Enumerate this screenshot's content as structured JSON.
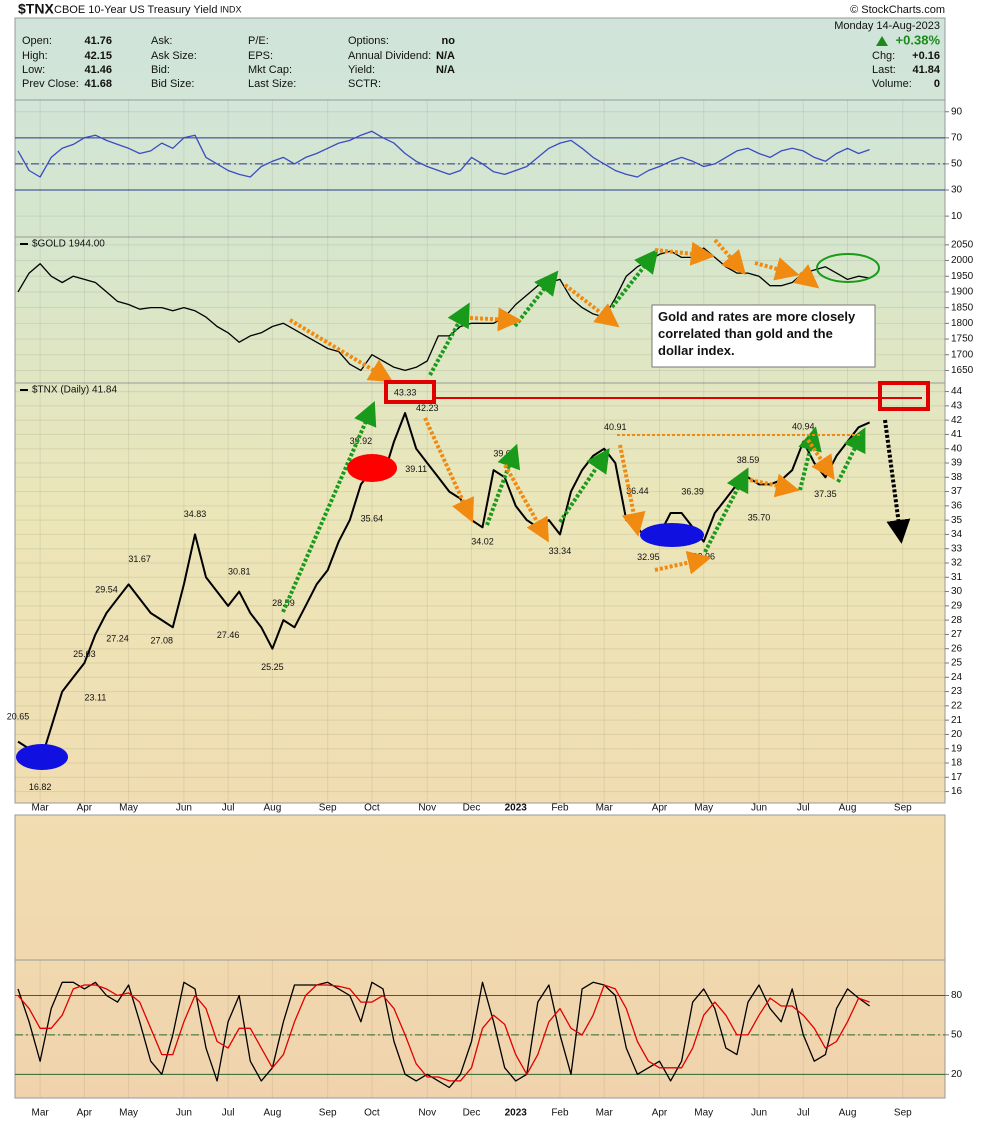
{
  "header": {
    "symbol": "$TNX",
    "name": "CBOE 10-Year US Treasury Yield",
    "exchange": "INDX",
    "watermark": "© StockCharts.com",
    "date": "Monday 14-Aug-2023",
    "change_percent": "+0.38%",
    "quote": [
      [
        {
          "label": "Open:",
          "value": 41.76
        },
        {
          "label": "High:",
          "value": 42.15
        },
        {
          "label": "Low:",
          "value": 41.46
        },
        {
          "label": "Prev Close:",
          "value": 41.68
        }
      ],
      [
        {
          "label": "Ask:"
        },
        {
          "label": "Ask Size:"
        },
        {
          "label": "Bid:"
        },
        {
          "label": "Bid Size:"
        }
      ],
      [
        {
          "label": "P/E:"
        },
        {
          "label": "EPS:"
        },
        {
          "label": "Mkt Cap:"
        },
        {
          "label": "Last Size:"
        }
      ],
      [
        {
          "label": "Options:",
          "value": "no"
        },
        {
          "label": "Annual Dividend:",
          "value": "N/A"
        },
        {
          "label": "Yield:",
          "value": "N/A"
        },
        {
          "label": "SCTR:"
        }
      ]
    ],
    "summary": [
      {
        "label": "Chg:",
        "value": "+0.16"
      },
      {
        "label": "Last:",
        "value": 41.84
      },
      {
        "label": "Volume:",
        "value": 0
      }
    ]
  },
  "annotation": "Gold and rates are more closely correlated than gold and the dollar index.",
  "chart_data": [
    {
      "type": "line",
      "ylim": [
        -6,
        99
      ],
      "yticks": [
        10,
        30,
        50,
        70,
        90
      ],
      "reference_lines": [
        30,
        50,
        70
      ],
      "reference_color": "#2a3a8a",
      "grid": true,
      "series": [
        {
          "color": "#3b4cc0",
          "values": [
            60,
            45,
            40,
            55,
            62,
            65,
            70,
            72,
            68,
            65,
            62,
            58,
            60,
            66,
            62,
            70,
            72,
            55,
            50,
            45,
            42,
            40,
            48,
            52,
            55,
            50,
            55,
            58,
            62,
            66,
            68,
            72,
            75,
            70,
            66,
            58,
            52,
            48,
            45,
            42,
            45,
            55,
            50,
            44,
            42,
            45,
            48,
            55,
            62,
            66,
            68,
            62,
            55,
            50,
            45,
            42,
            40,
            45,
            48,
            52,
            55,
            52,
            48,
            50,
            55,
            60,
            62,
            58,
            55,
            60,
            62,
            60,
            55,
            52,
            58,
            62,
            58,
            61,
            null,
            null,
            null,
            null,
            null,
            null
          ]
        }
      ]
    },
    {
      "type": "line",
      "ylim": [
        1610,
        2075
      ],
      "yticks": [
        1650,
        1700,
        1750,
        1800,
        1850,
        1900,
        1950,
        2000,
        2050
      ],
      "grid": true,
      "series": [
        {
          "name": "$GOLD 1944.00",
          "color": "#000000",
          "values": [
            1900,
            1960,
            1990,
            1950,
            1930,
            1950,
            1940,
            1930,
            1900,
            1870,
            1860,
            1845,
            1850,
            1850,
            1840,
            1850,
            1840,
            1820,
            1790,
            1770,
            1740,
            1760,
            1770,
            1790,
            1800,
            1780,
            1760,
            1740,
            1720,
            1710,
            1670,
            1650,
            1700,
            1680,
            1660,
            1650,
            1660,
            1680,
            1760,
            1760,
            1790,
            1800,
            1800,
            1800,
            1820,
            1860,
            1890,
            1920,
            1930,
            1940,
            1880,
            1850,
            1830,
            1820,
            1880,
            1950,
            1980,
            2000,
            2020,
            2030,
            2010,
            2010,
            2040,
            2010,
            1980,
            1960,
            1960,
            1950,
            1920,
            1920,
            1930,
            1960,
            1970,
            1980,
            1960,
            1940,
            1950,
            1944,
            null,
            null,
            null,
            null,
            null,
            null
          ]
        }
      ]
    },
    {
      "type": "line",
      "ylim": [
        15.2,
        44.6
      ],
      "yticks": [
        16,
        17,
        18,
        19,
        20,
        21,
        22,
        23,
        24,
        25,
        26,
        27,
        28,
        29,
        30,
        31,
        32,
        33,
        34,
        35,
        36,
        37,
        38,
        39,
        40,
        41,
        42,
        43,
        44
      ],
      "grid": true,
      "categories": [
        null,
        null,
        "Mar",
        null,
        null,
        null,
        "Apr",
        null,
        null,
        null,
        "May",
        null,
        null,
        null,
        null,
        "Jun",
        null,
        null,
        null,
        "Jul",
        null,
        null,
        null,
        "Aug",
        null,
        null,
        null,
        null,
        "Sep",
        null,
        null,
        null,
        "Oct",
        null,
        null,
        null,
        null,
        "Nov",
        null,
        null,
        null,
        "Dec",
        null,
        null,
        null,
        "2023",
        null,
        null,
        null,
        "Feb",
        null,
        null,
        null,
        "Mar",
        null,
        null,
        null,
        null,
        "Apr",
        null,
        null,
        null,
        "May",
        null,
        null,
        null,
        null,
        "Jun",
        null,
        null,
        null,
        "Jul",
        null,
        null,
        null,
        "Aug",
        null,
        null,
        null,
        null,
        "Sep",
        null,
        null,
        null
      ],
      "series": [
        {
          "name": "$TNX (Daily) 41.84",
          "color": "#000000",
          "values": [
            19.5,
            19,
            18,
            20.5,
            23,
            24,
            25,
            27,
            28.5,
            29.5,
            30.5,
            29.5,
            28.5,
            28,
            27.5,
            30.5,
            34,
            31,
            30,
            29,
            30,
            28.5,
            27.5,
            26,
            28,
            27.5,
            29,
            30.5,
            31.5,
            33.5,
            35,
            37.5,
            38.5,
            38,
            40.5,
            42.5,
            40,
            39,
            38,
            37,
            36.5,
            35,
            34.5,
            38.5,
            38,
            36,
            35,
            34.5,
            35,
            34,
            37,
            38.5,
            39.5,
            40,
            39,
            35,
            34.5,
            33.5,
            34,
            35.5,
            35.5,
            34.5,
            33.5,
            35.5,
            36.5,
            37.5,
            38,
            37.5,
            37.5,
            37.8,
            38.5,
            40.5,
            39,
            38,
            39.5,
            40.5,
            41.5,
            41.84,
            null,
            null,
            null,
            null,
            null,
            null
          ]
        }
      ],
      "point_labels": [
        20.65,
        null,
        16.82,
        null,
        null,
        null,
        25.03,
        23.11,
        29.54,
        27.24,
        null,
        31.67,
        null,
        27.08,
        null,
        null,
        34.83,
        null,
        null,
        27.46,
        30.81,
        null,
        null,
        25.25,
        28.59,
        null,
        null,
        null,
        null,
        null,
        null,
        39.92,
        35.64,
        null,
        null,
        43.33,
        39.11,
        42.23,
        null,
        null,
        null,
        null,
        34.02,
        null,
        39.05,
        null,
        null,
        null,
        null,
        33.34,
        null,
        null,
        null,
        null,
        40.91,
        null,
        36.44,
        32.95,
        null,
        null,
        null,
        36.39,
        32.96,
        null,
        null,
        null,
        38.59,
        {
          "value": 35.7,
          "label": "35.70"
        },
        null,
        null,
        null,
        40.94,
        null,
        37.35,
        null,
        null,
        null,
        null,
        null,
        null,
        null,
        null,
        null,
        null
      ]
    },
    {
      "type": "line",
      "ylim": [
        2,
        107
      ],
      "yticks": [
        20,
        50,
        80
      ],
      "reference_lines": [
        20,
        50,
        80
      ],
      "reference_color": "#2f6b2f",
      "grid": true,
      "categories": [
        null,
        null,
        "Mar",
        null,
        null,
        null,
        "Apr",
        null,
        null,
        null,
        "May",
        null,
        null,
        null,
        null,
        "Jun",
        null,
        null,
        null,
        "Jul",
        null,
        null,
        null,
        "Aug",
        null,
        null,
        null,
        null,
        "Sep",
        null,
        null,
        null,
        "Oct",
        null,
        null,
        null,
        null,
        "Nov",
        null,
        null,
        null,
        "Dec",
        null,
        null,
        null,
        "2023",
        null,
        null,
        null,
        "Feb",
        null,
        null,
        null,
        "Mar",
        null,
        null,
        null,
        null,
        "Apr",
        null,
        null,
        null,
        "May",
        null,
        null,
        null,
        null,
        "Jun",
        null,
        null,
        null,
        "Jul",
        null,
        null,
        null,
        "Aug",
        null,
        null,
        null,
        null,
        "Sep",
        null,
        null,
        null
      ],
      "series": [
        {
          "color": "#000000",
          "values": [
            85,
            60,
            30,
            70,
            90,
            90,
            85,
            90,
            80,
            75,
            88,
            60,
            30,
            20,
            50,
            90,
            85,
            40,
            15,
            60,
            80,
            30,
            15,
            25,
            60,
            88,
            88,
            88,
            90,
            85,
            80,
            60,
            90,
            85,
            45,
            20,
            15,
            20,
            15,
            10,
            20,
            45,
            90,
            60,
            25,
            15,
            20,
            75,
            88,
            50,
            20,
            85,
            90,
            88,
            80,
            40,
            20,
            25,
            30,
            15,
            30,
            75,
            85,
            70,
            40,
            35,
            75,
            88,
            70,
            60,
            85,
            50,
            30,
            35,
            70,
            85,
            78,
            72,
            null,
            null,
            null,
            null,
            null,
            null
          ]
        },
        {
          "color": "#e00000",
          "values": [
            80,
            70,
            55,
            55,
            65,
            85,
            88,
            88,
            85,
            80,
            82,
            75,
            55,
            35,
            35,
            60,
            80,
            70,
            45,
            40,
            55,
            55,
            40,
            25,
            35,
            60,
            80,
            88,
            88,
            87,
            85,
            75,
            75,
            80,
            70,
            50,
            28,
            18,
            18,
            15,
            15,
            25,
            55,
            65,
            58,
            35,
            20,
            35,
            60,
            70,
            55,
            50,
            65,
            88,
            85,
            70,
            45,
            30,
            25,
            25,
            25,
            40,
            65,
            75,
            65,
            50,
            50,
            65,
            78,
            72,
            72,
            65,
            55,
            40,
            45,
            60,
            78,
            75,
            null,
            null,
            null,
            null,
            null,
            null
          ]
        }
      ]
    }
  ]
}
